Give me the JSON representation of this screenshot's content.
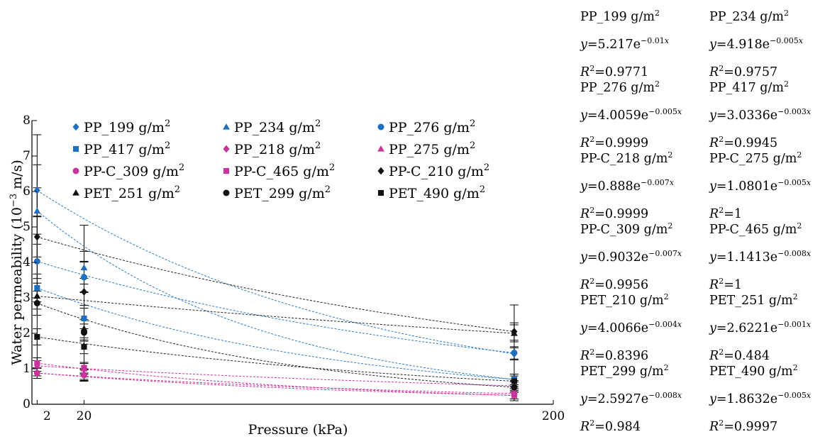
{
  "chart_data": {
    "type": "scatter",
    "xlabel": "Pressure (kPa)",
    "ylabel": "Water permeability (10^-3 m/s)",
    "xlim": [
      0,
      200
    ],
    "ylim": [
      0,
      8
    ],
    "x_ticks": [
      2,
      20,
      200
    ],
    "y_ticks": [
      0,
      1,
      2,
      3,
      4,
      5,
      6,
      7,
      8
    ],
    "grid": false,
    "legend_position": "top-left",
    "x": [
      2,
      20,
      185
    ],
    "series": [
      {
        "name": "PP_199 g/m2",
        "marker": "diamond",
        "color": "#1f6fc0",
        "values": [
          6.03,
          3.6,
          1.42
        ],
        "trend": "blue"
      },
      {
        "name": "PP_234 g/m2",
        "marker": "triangle",
        "color": "#1f6fc0",
        "values": [
          5.45,
          3.85,
          0.7
        ],
        "trend": "blue"
      },
      {
        "name": "PP_276 g/m2",
        "marker": "circle",
        "color": "#1f6fc0",
        "values": [
          4.03,
          3.58,
          1.45
        ],
        "trend": "blue"
      },
      {
        "name": "PP_417 g/m2",
        "marker": "square",
        "color": "#1f6fc0",
        "values": [
          3.28,
          2.42,
          0.7
        ],
        "trend": "blue"
      },
      {
        "name": "PP_218 g/m2",
        "marker": "diamond",
        "color": "#c8349c",
        "values": [
          0.88,
          0.85,
          0.25
        ],
        "trend": "pink"
      },
      {
        "name": "PP_275 g/m2",
        "marker": "triangle",
        "color": "#c8349c",
        "values": [
          1.08,
          1.0,
          0.52
        ],
        "trend": "pink"
      },
      {
        "name": "PP-C_309 g/m2",
        "marker": "circle",
        "color": "#c8349c",
        "values": [
          0.88,
          0.82,
          0.3
        ],
        "trend": "pink"
      },
      {
        "name": "PP-C_465 g/m2",
        "marker": "square",
        "color": "#c8349c",
        "values": [
          1.16,
          1.03,
          0.25
        ],
        "trend": "pink"
      },
      {
        "name": "PP-C_210 g/m2",
        "marker": "diamond",
        "color": "#111111",
        "values": [
          4.72,
          3.17,
          2.05
        ],
        "trend": "black"
      },
      {
        "name": "PET_251 g/m2",
        "marker": "triangle",
        "color": "#111111",
        "values": [
          3.05,
          2.13,
          2.0
        ],
        "trend": "black"
      },
      {
        "name": "PET_299 g/m2",
        "marker": "circle",
        "color": "#111111",
        "values": [
          2.85,
          2.02,
          0.48
        ],
        "trend": "black"
      },
      {
        "name": "PET_490 g/m2",
        "marker": "square",
        "color": "#111111",
        "values": [
          1.9,
          1.62,
          0.65
        ],
        "trend": "black"
      }
    ],
    "legend": [
      {
        "name": "PP_199 g/m",
        "sup": "2",
        "marker": "diamond",
        "color": "#1f6fc0"
      },
      {
        "name": "PP_234 g/m",
        "sup": "2",
        "marker": "triangle",
        "color": "#1f6fc0"
      },
      {
        "name": "PP_276 g/m",
        "sup": "2",
        "marker": "circle",
        "color": "#1f6fc0"
      },
      {
        "name": "PP_417 g/m",
        "sup": "2",
        "marker": "square",
        "color": "#1f6fc0"
      },
      {
        "name": "PP_218 g/m",
        "sup": "2",
        "marker": "diamond",
        "color": "#c8349c"
      },
      {
        "name": "PP_275 g/m",
        "sup": "2",
        "marker": "triangle",
        "color": "#c8349c"
      },
      {
        "name": "PP-C_309 g/m",
        "sup": "2",
        "marker": "circle",
        "color": "#c8349c"
      },
      {
        "name": "PP-C_465 g/m",
        "sup": "2",
        "marker": "square",
        "color": "#c8349c"
      },
      {
        "name": "PP-C_210 g/m",
        "sup": "2",
        "marker": "diamond",
        "color": "#111111"
      },
      {
        "name": "PET_251 g/m",
        "sup": "2",
        "marker": "triangle",
        "color": "#111111"
      },
      {
        "name": "PET_299 g/m",
        "sup": "2",
        "marker": "circle",
        "color": "#111111"
      },
      {
        "name": "PET_490 g/m",
        "sup": "2",
        "marker": "square",
        "color": "#111111"
      }
    ],
    "trend_colors": {
      "blue": "#2b7bc4",
      "pink": "#c8349c",
      "black": "#222222"
    },
    "fits": [
      {
        "name": "PP_199 g/m",
        "coef": "5.217",
        "exp": "−0.01",
        "r2": "0.9771"
      },
      {
        "name": "PP_234 g/m",
        "coef": "4.918",
        "exp": "−0.005",
        "r2": "0.9757"
      },
      {
        "name": "PP_276 g/m",
        "coef": "4.0059",
        "exp": "−0.005",
        "r2": "0.9999"
      },
      {
        "name": "PP_417 g/m",
        "coef": "3.0336",
        "exp": "−0.003",
        "r2": "0.9945"
      },
      {
        "name": "PP-C_218 g/m",
        "coef": "0.888",
        "exp": "−0.007",
        "r2": "0.9999"
      },
      {
        "name": "PP-C_275 g/m",
        "coef": "1.0801",
        "exp": "−0.005",
        "r2": "1"
      },
      {
        "name": "PP-C_309 g/m",
        "coef": "0.9032",
        "exp": "−0.007",
        "r2": "0.9956"
      },
      {
        "name": "PP-C_465 g/m",
        "coef": "1.1413",
        "exp": "−0.008",
        "r2": "1"
      },
      {
        "name": "PET_210 g/m",
        "coef": "4.0066",
        "exp": "−0.004",
        "r2": "0.8396"
      },
      {
        "name": "PET_251 g/m",
        "coef": "2.6221",
        "exp": "−0.001",
        "r2": "0.484"
      },
      {
        "name": "PET_299 g/m",
        "coef": "2.5927",
        "exp": "−0.008",
        "r2": "0.984"
      },
      {
        "name": "PET_490 g/m",
        "coef": "1.8632",
        "exp": "−0.005",
        "r2": "0.9997"
      }
    ]
  }
}
